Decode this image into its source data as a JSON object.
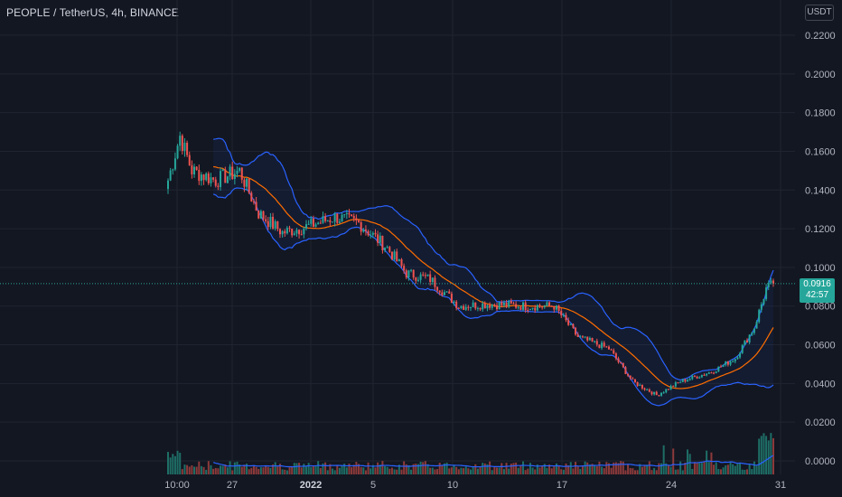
{
  "header": {
    "title": "PEOPLE / TetherUS, 4h, BINANCE",
    "currency_label": "USDT"
  },
  "price_badge": {
    "price": "0.0916",
    "countdown": "42:57"
  },
  "colors": {
    "background": "#131722",
    "up": "#26a69a",
    "down": "#ef5350",
    "volume_up": "#1e6e66",
    "volume_down": "#8c3a3a",
    "band": "#2962ff",
    "basis": "#ff6d00",
    "grid": "#1f2430"
  },
  "chart_data": {
    "type": "candlestick",
    "title": "PEOPLE / TetherUS, 4h, BINANCE",
    "y_axis": {
      "ticks": [
        "0.2200",
        "0.2000",
        "0.1800",
        "0.1600",
        "0.1400",
        "0.1200",
        "0.1000",
        "0.0800",
        "0.0600",
        "0.0400",
        "0.0200",
        "0.0000"
      ],
      "range": [
        0.0,
        0.225
      ]
    },
    "x_axis": {
      "ticks": [
        {
          "label": "10:00",
          "bold": false
        },
        {
          "label": "27",
          "bold": false
        },
        {
          "label": "2022",
          "bold": true
        },
        {
          "label": "5",
          "bold": false
        },
        {
          "label": "10",
          "bold": false
        },
        {
          "label": "17",
          "bold": false
        },
        {
          "label": "24",
          "bold": false
        },
        {
          "label": "31",
          "bold": false
        }
      ]
    },
    "current_price": 0.0916,
    "price_path": [
      {
        "bar": 0,
        "close": 0.145
      },
      {
        "bar": 5,
        "close": 0.168
      },
      {
        "bar": 10,
        "close": 0.15
      },
      {
        "bar": 20,
        "close": 0.145
      },
      {
        "bar": 30,
        "close": 0.15
      },
      {
        "bar": 38,
        "close": 0.128
      },
      {
        "bar": 48,
        "close": 0.118
      },
      {
        "bar": 58,
        "close": 0.121
      },
      {
        "bar": 70,
        "close": 0.126
      },
      {
        "bar": 80,
        "close": 0.123
      },
      {
        "bar": 92,
        "close": 0.11
      },
      {
        "bar": 100,
        "close": 0.097
      },
      {
        "bar": 110,
        "close": 0.094
      },
      {
        "bar": 122,
        "close": 0.08
      },
      {
        "bar": 135,
        "close": 0.081
      },
      {
        "bar": 150,
        "close": 0.08
      },
      {
        "bar": 162,
        "close": 0.08
      },
      {
        "bar": 172,
        "close": 0.064
      },
      {
        "bar": 185,
        "close": 0.058
      },
      {
        "bar": 195,
        "close": 0.041
      },
      {
        "bar": 205,
        "close": 0.034
      },
      {
        "bar": 215,
        "close": 0.041
      },
      {
        "bar": 228,
        "close": 0.046
      },
      {
        "bar": 238,
        "close": 0.053
      },
      {
        "bar": 246,
        "close": 0.069
      },
      {
        "bar": 251,
        "close": 0.089
      },
      {
        "bar": 254,
        "close": 0.0916
      }
    ],
    "bar_count": 255
  }
}
